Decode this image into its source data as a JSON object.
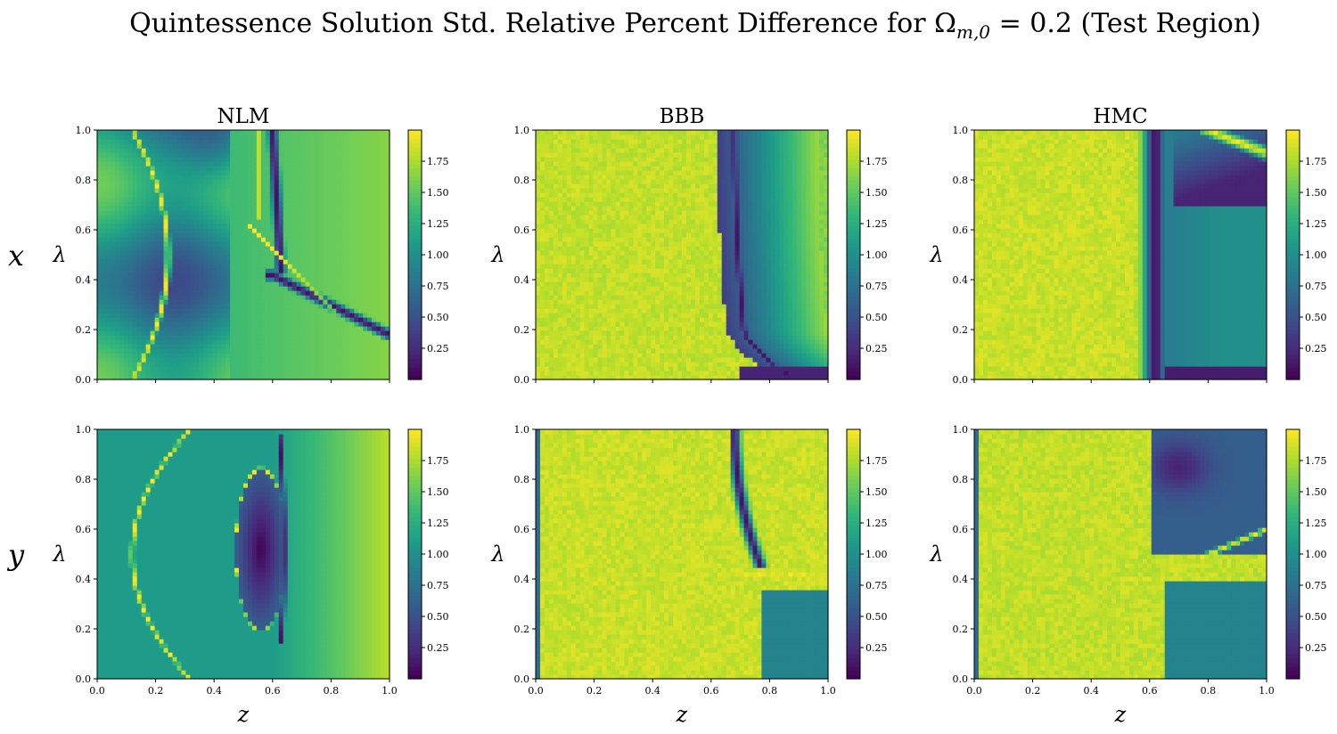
{
  "figure": {
    "title": "Quintessence Solution Std. Relative Percent Difference for Ωm,0 = 0.2 (Test Region)"
  },
  "chart_data": {
    "type": "heatmap",
    "title": "Quintessence Solution Std. Relative Percent Difference for Ωm,0 = 0.2 (Test Region)",
    "columns": [
      "NLM",
      "BBB",
      "HMC"
    ],
    "rows": [
      "x",
      "y"
    ],
    "xlabel": "z",
    "ylabel": "λ",
    "xlim": [
      0,
      1
    ],
    "ylim": [
      0,
      1
    ],
    "x_ticks": [
      "0.0",
      "0.2",
      "0.4",
      "0.6",
      "0.8",
      "1.0"
    ],
    "y_ticks": [
      "0.0",
      "0.2",
      "0.4",
      "0.6",
      "0.8",
      "1.0"
    ],
    "colorbar": {
      "colormap": "viridis",
      "range": [
        0,
        2
      ],
      "ticks": [
        "0.25",
        "0.50",
        "0.75",
        "1.00",
        "1.25",
        "1.50",
        "1.75"
      ]
    },
    "panels": [
      {
        "row": "x",
        "method": "NLM"
      },
      {
        "row": "x",
        "method": "BBB"
      },
      {
        "row": "x",
        "method": "HMC"
      },
      {
        "row": "y",
        "method": "NLM"
      },
      {
        "row": "y",
        "method": "BBB"
      },
      {
        "row": "y",
        "method": "HMC"
      }
    ]
  }
}
